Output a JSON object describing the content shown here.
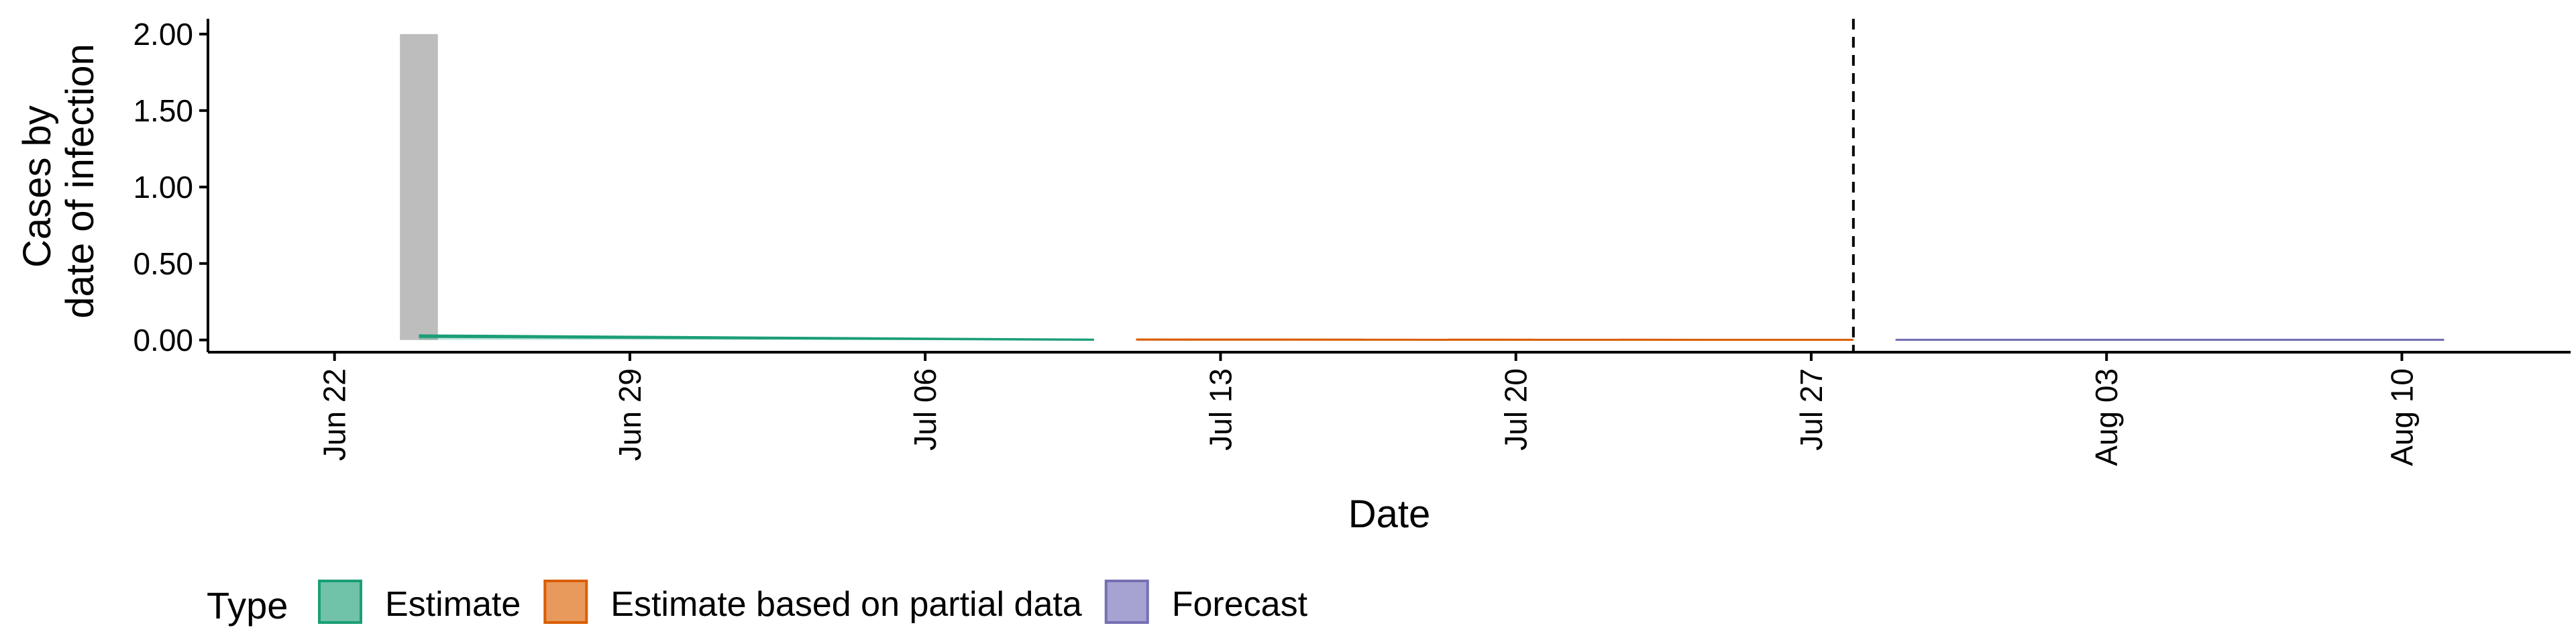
{
  "chart_data": {
    "type": "area",
    "xlabel": "Date",
    "ylabel_lines": [
      "Cases by",
      "date of infection"
    ],
    "ylim": [
      -0.08,
      2.1
    ],
    "xlim": [
      "2020-06-19",
      "2020-08-14"
    ],
    "y_ticks": [
      0,
      0.5,
      1,
      1.5,
      2
    ],
    "y_tick_labels": [
      "0.00",
      "0.50",
      "1.00",
      "1.50",
      "2.00"
    ],
    "x_ticks": [
      "2020-06-22",
      "2020-06-29",
      "2020-07-06",
      "2020-07-13",
      "2020-07-20",
      "2020-07-27",
      "2020-08-03",
      "2020-08-10"
    ],
    "x_tick_labels": [
      "Jun 22",
      "Jun 29",
      "Jul 06",
      "Jul 13",
      "Jul 20",
      "Jul 27",
      "Aug 03",
      "Aug 10"
    ],
    "bars": [
      {
        "date": "2020-06-24",
        "value": 2.0,
        "color": "#bdbdbd"
      }
    ],
    "series": [
      {
        "type_label": "Estimate",
        "color": "#1b9e77",
        "x": [
          "2020-06-24",
          "2020-07-10"
        ],
        "lower": [
          0.0,
          0.0
        ],
        "upper": [
          0.03,
          0.002
        ],
        "median": [
          0.02,
          0.001
        ]
      },
      {
        "type_label": "Estimate based on partial data",
        "color": "#d95f02",
        "x": [
          "2020-07-11",
          "2020-07-28"
        ],
        "lower": [
          0.0,
          0.0
        ],
        "upper": [
          0.003,
          0.001
        ],
        "median": [
          0.002,
          0.0005
        ]
      },
      {
        "type_label": "Forecast",
        "color": "#7570b3",
        "x": [
          "2020-07-29",
          "2020-08-11"
        ],
        "lower": [
          0.0,
          0.0
        ],
        "upper": [
          0.001,
          0.001
        ],
        "median": [
          0.0005,
          0.0005
        ]
      }
    ],
    "vline": {
      "date": "2020-07-28",
      "style": "dashed"
    },
    "grid": false,
    "legend": {
      "position": "bottom-left",
      "title": "Type",
      "items": [
        {
          "label": "Estimate",
          "fill": "#70c2a8",
          "stroke": "#1b9e77"
        },
        {
          "label": "Estimate based on partial data",
          "fill": "#e89a5c",
          "stroke": "#d95f02"
        },
        {
          "label": "Forecast",
          "fill": "#a6a3d2",
          "stroke": "#7570b3"
        }
      ]
    }
  }
}
